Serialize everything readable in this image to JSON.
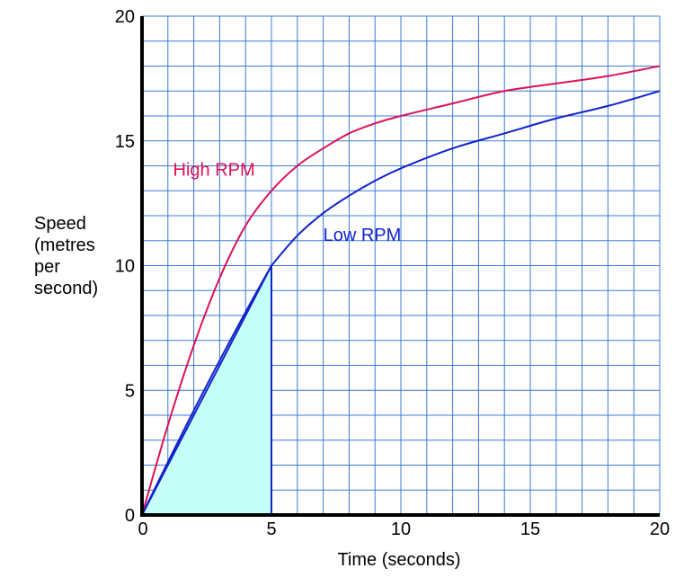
{
  "chart_data": {
    "type": "line",
    "xlabel": "Time (seconds)",
    "ylabel_lines": [
      "Speed",
      "(metres",
      "per",
      "second)"
    ],
    "xlim": [
      0,
      20
    ],
    "ylim": [
      0,
      20
    ],
    "xticks": [
      0,
      5,
      10,
      15,
      20
    ],
    "yticks": [
      0,
      5,
      10,
      15,
      20
    ],
    "x_tick_labels": [
      "0",
      "5",
      "10",
      "15",
      "20"
    ],
    "y_tick_labels": [
      "0",
      "5",
      "10",
      "15",
      "20"
    ],
    "grid": true,
    "grid_step": 1,
    "grid_color": "#3b7bd8",
    "series": [
      {
        "name": "High RPM",
        "color": "#dd1155",
        "x": [
          0,
          1,
          2,
          3,
          4,
          5,
          6,
          7,
          8,
          9,
          10,
          12,
          14,
          16,
          18,
          20
        ],
        "y": [
          0,
          3.6,
          6.8,
          9.5,
          11.6,
          13.0,
          14.0,
          14.7,
          15.3,
          15.7,
          16.0,
          16.5,
          17.0,
          17.3,
          17.6,
          18.0
        ]
      },
      {
        "name": "Low RPM",
        "color": "#1122cc",
        "x": [
          0,
          5,
          6,
          7,
          8,
          9,
          10,
          12,
          14,
          16,
          18,
          20
        ],
        "y": [
          0,
          10.0,
          11.2,
          12.1,
          12.8,
          13.4,
          13.9,
          14.7,
          15.3,
          15.9,
          16.4,
          17.0
        ]
      }
    ],
    "area_under": {
      "color": "#c4fff8",
      "stroke": "#1122cc",
      "x": [
        0,
        5
      ],
      "y": [
        0,
        10
      ]
    },
    "chord": {
      "color": "#1122cc",
      "x": [
        0,
        5
      ],
      "y": [
        0,
        10
      ]
    },
    "labels": [
      {
        "text": "High RPM",
        "x": 1.2,
        "y": 13.6,
        "color": "#dd1155"
      },
      {
        "text": "Low RPM",
        "x": 7.0,
        "y": 11.0,
        "color": "#1122cc"
      }
    ]
  }
}
